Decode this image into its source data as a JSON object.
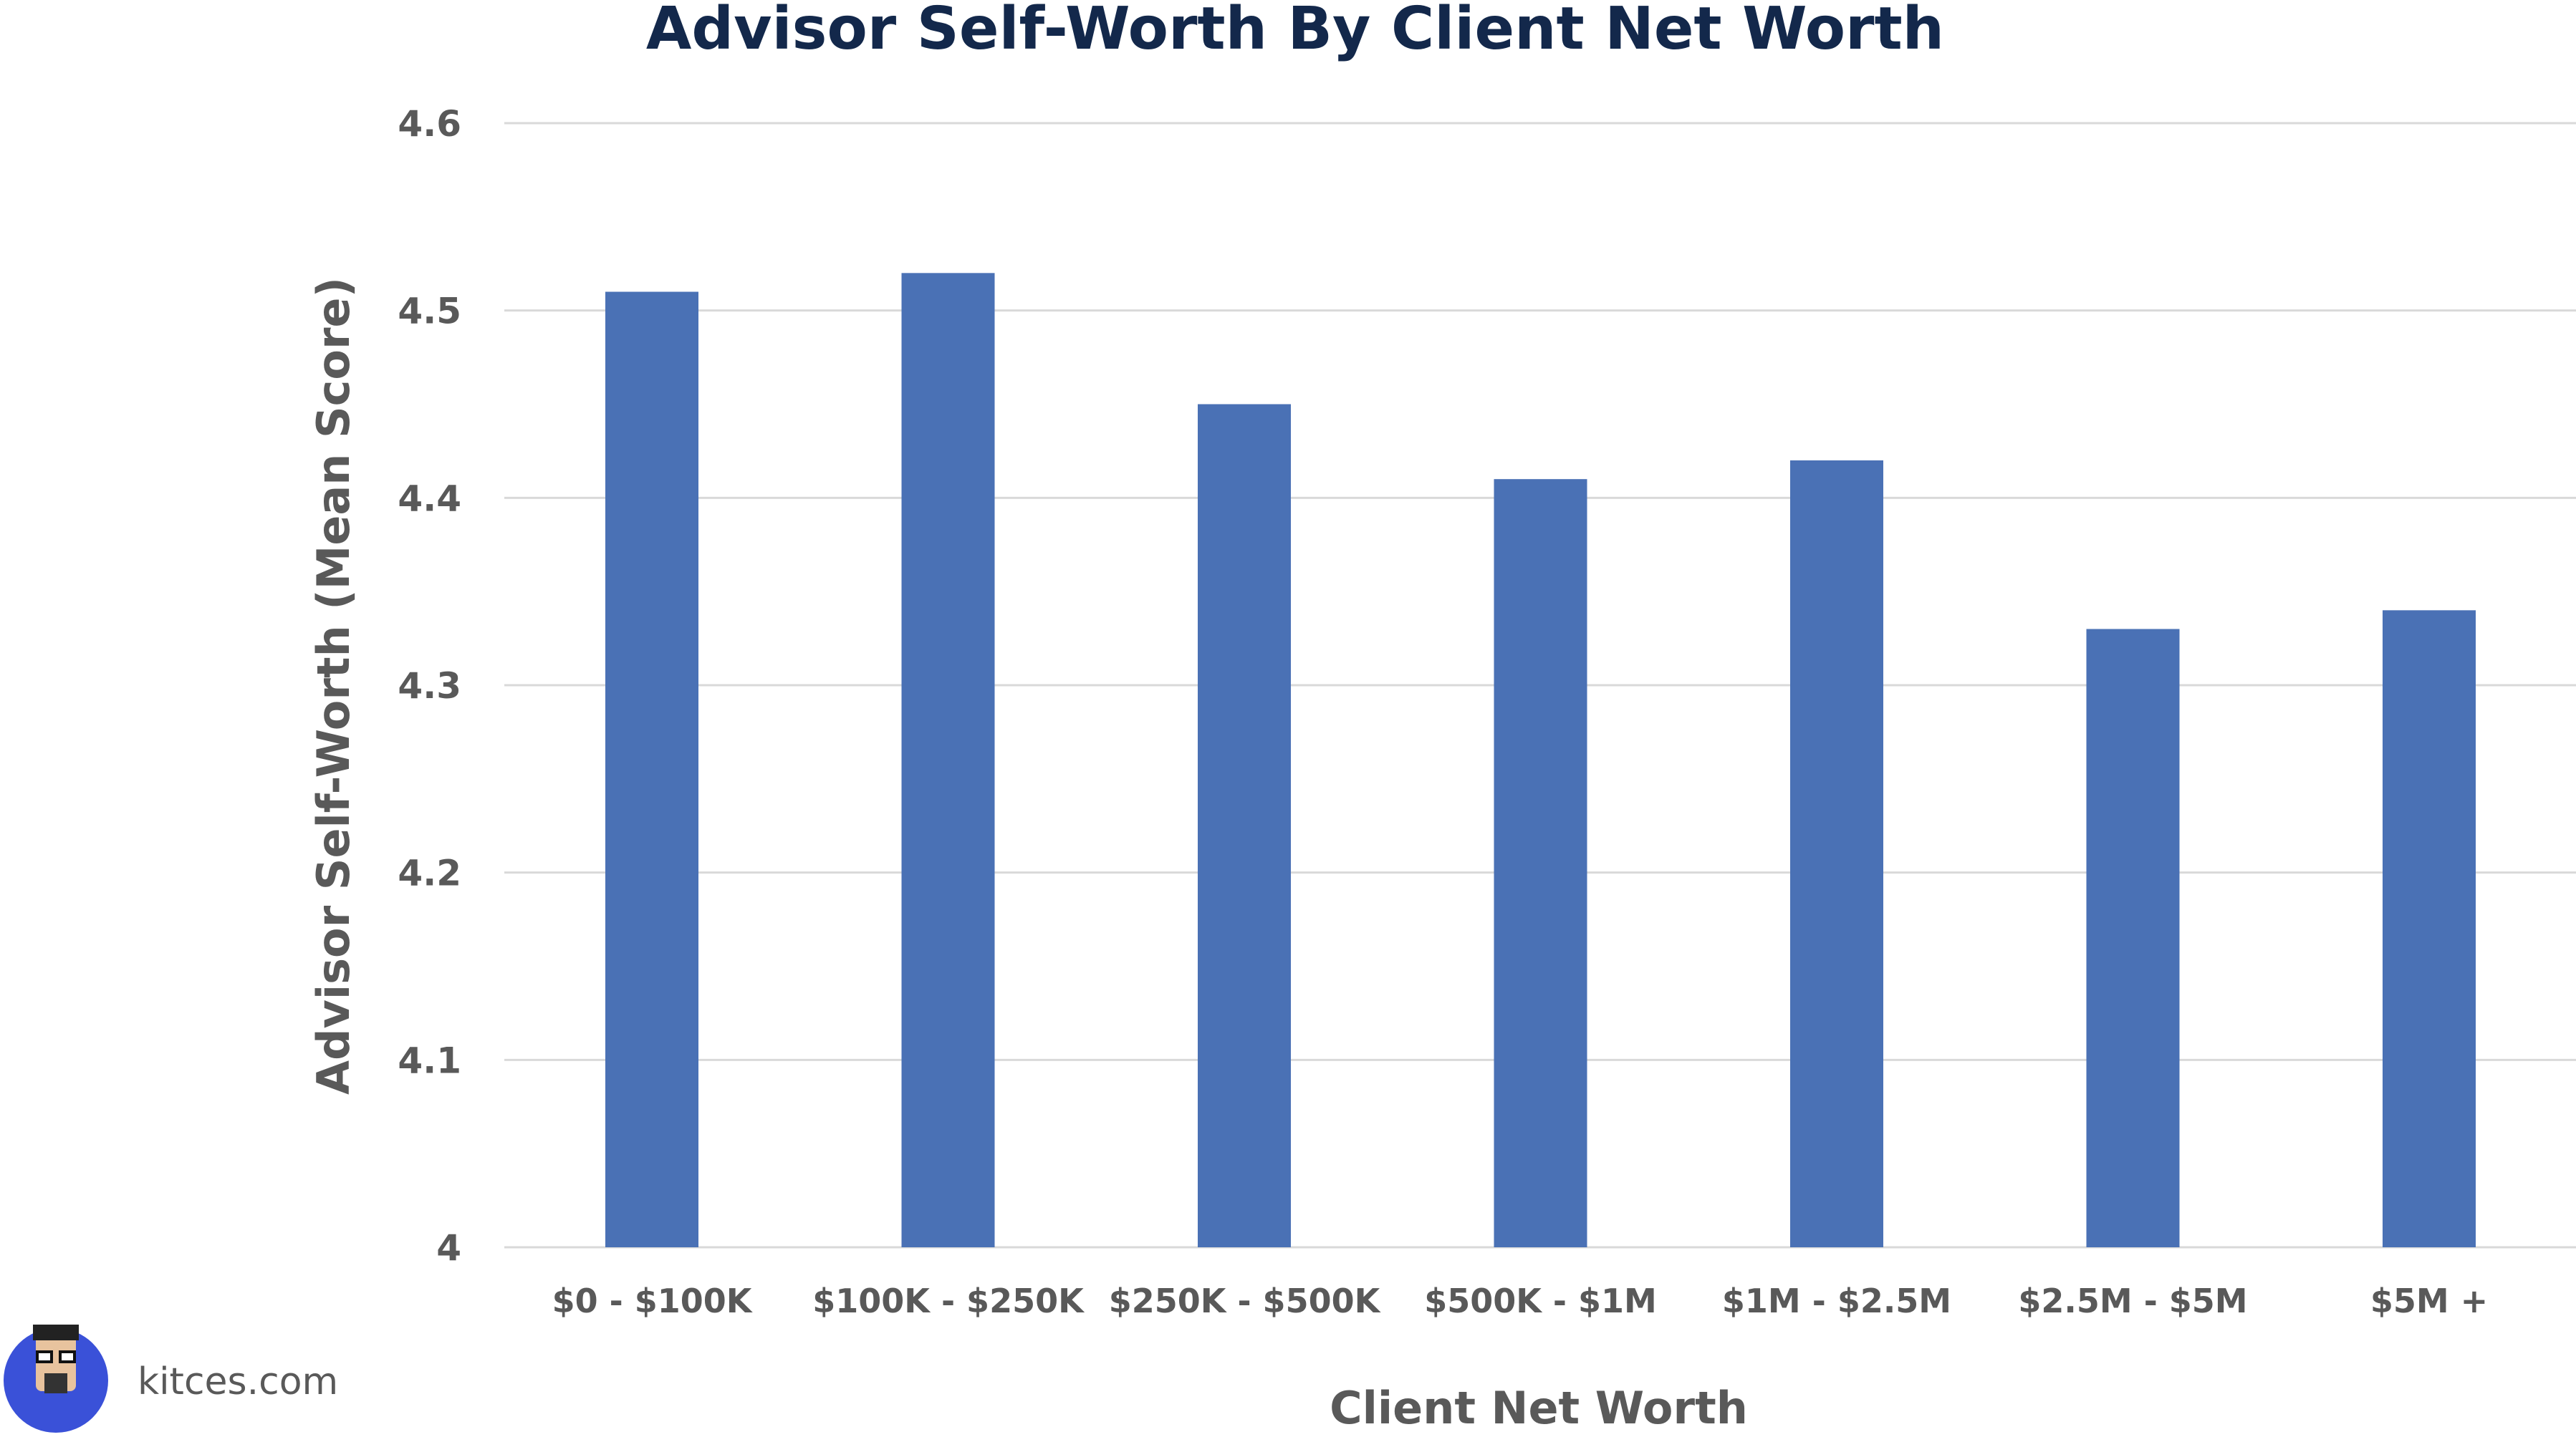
{
  "branding": {
    "site": "kitces.com",
    "logo_icon": "cartoon-avatar-icon"
  },
  "colors": {
    "title": "#13284b",
    "bar": "#4a71b5",
    "grid": "#d9d9d9",
    "text": "#595959"
  },
  "chart_data": {
    "type": "bar",
    "title": "Advisor Self-Worth By Client Net Worth",
    "xlabel": "Client Net Worth",
    "ylabel": "Advisor Self-Worth (Mean Score)",
    "ylim": [
      4,
      4.6
    ],
    "yticks": [
      "4",
      "4.1",
      "4.2",
      "4.3",
      "4.4",
      "4.5",
      "4.6"
    ],
    "grid": true,
    "legend": "none",
    "categories": [
      "$0 - $100K",
      "$100K - $250K",
      "$250K - $500K",
      "$500K - $1M",
      "$1M - $2.5M",
      "$2.5M - $5M",
      "$5M +"
    ],
    "values": [
      4.51,
      4.52,
      4.45,
      4.41,
      4.42,
      4.33,
      4.34
    ]
  }
}
